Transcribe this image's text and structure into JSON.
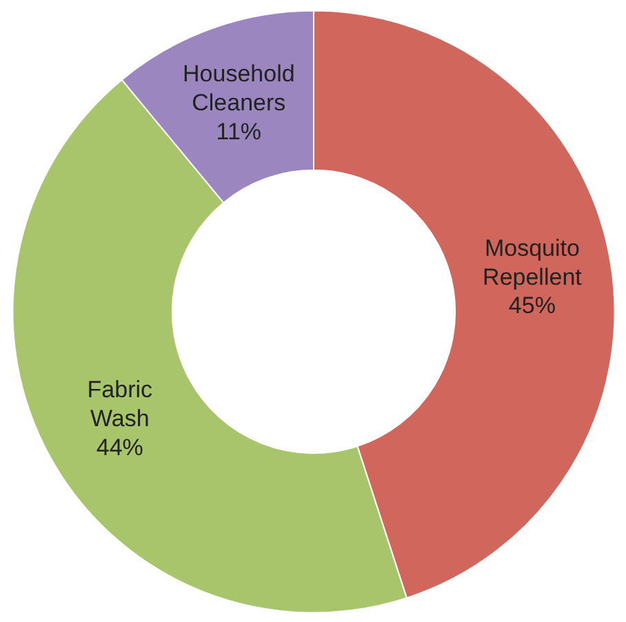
{
  "chart_data": {
    "type": "donut",
    "categories": [
      "Mosquito Repellent",
      "Fabric Wash",
      "Household Cleaners"
    ],
    "values": [
      45,
      44,
      11
    ],
    "colors": [
      "#d0665c",
      "#a9c56b",
      "#9b86c0"
    ],
    "value_labels": [
      "45%",
      "44%",
      "11%"
    ]
  }
}
